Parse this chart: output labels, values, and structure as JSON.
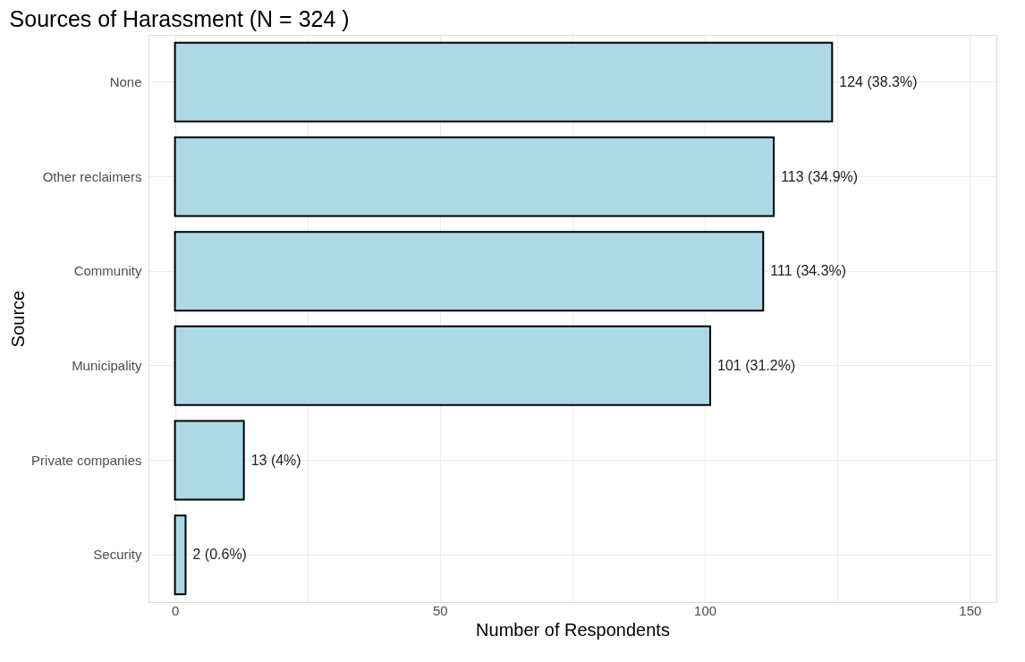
{
  "chart_data": {
    "type": "bar",
    "orientation": "horizontal",
    "title": "Sources of Harassment (N = 324 )",
    "xlabel": "Number of Respondents",
    "ylabel": "Source",
    "categories": [
      "None",
      "Other reclaimers",
      "Community",
      "Municipality",
      "Private companies",
      "Security"
    ],
    "values": [
      124,
      113,
      111,
      101,
      13,
      2
    ],
    "value_labels": [
      "124 (38.3%)",
      "113 (34.9%)",
      "111 (34.3%)",
      "101 (31.2%)",
      "13 (4%)",
      "2 (0.6%)"
    ],
    "color": "#add8e6",
    "xlim": [
      -5,
      155
    ],
    "xticks": [
      0,
      {
        "value": 25,
        "label": null
      },
      50,
      {
        "value": 75,
        "label": null
      },
      100,
      {
        "value": 125,
        "label": null
      },
      150
    ],
    "grid": true
  }
}
